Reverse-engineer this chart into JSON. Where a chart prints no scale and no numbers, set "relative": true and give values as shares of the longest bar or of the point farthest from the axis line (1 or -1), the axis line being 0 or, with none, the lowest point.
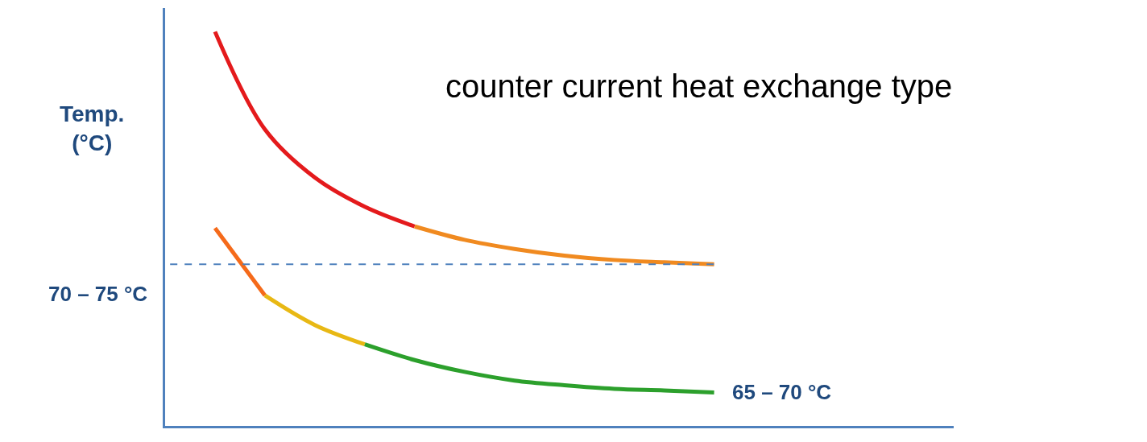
{
  "chart_data": {
    "type": "line",
    "relative": true,
    "title": "counter current heat exchange type",
    "ylabel": "Temp. (°C)",
    "categories": [
      null,
      null,
      null,
      null,
      null,
      null,
      null,
      null,
      null,
      null,
      null
    ],
    "series": [
      {
        "color": "#e41a1c",
        "values": [
          1.0,
          0.752,
          0.63,
          0.556,
          0.506,
          null,
          null,
          null,
          null,
          null,
          null
        ]
      },
      {
        "color": "#f08a20",
        "values": [
          null,
          null,
          null,
          null,
          0.506,
          0.472,
          0.449,
          0.432,
          0.421,
          0.415,
          0.41
        ]
      },
      {
        "color": "#f56a1a",
        "values": [
          0.502,
          0.331,
          null,
          null,
          null,
          null,
          null,
          null,
          null,
          null,
          null
        ]
      },
      {
        "color": "#e8b814",
        "values": [
          null,
          0.331,
          0.256,
          0.207,
          null,
          null,
          null,
          null,
          null,
          null,
          null
        ]
      },
      {
        "color": "#2ca02c",
        "values": [
          null,
          null,
          null,
          0.207,
          0.167,
          0.137,
          0.115,
          0.103,
          0.094,
          0.09,
          0.085
        ]
      }
    ],
    "ref_lines": [
      {
        "axis": "y",
        "value": 0.41,
        "color": "#4f81bd",
        "line_style": "dashed"
      }
    ],
    "annotations": [
      "70 – 75 °C",
      "65 – 70 °C"
    ],
    "line_style": "solid",
    "marker": "none"
  }
}
